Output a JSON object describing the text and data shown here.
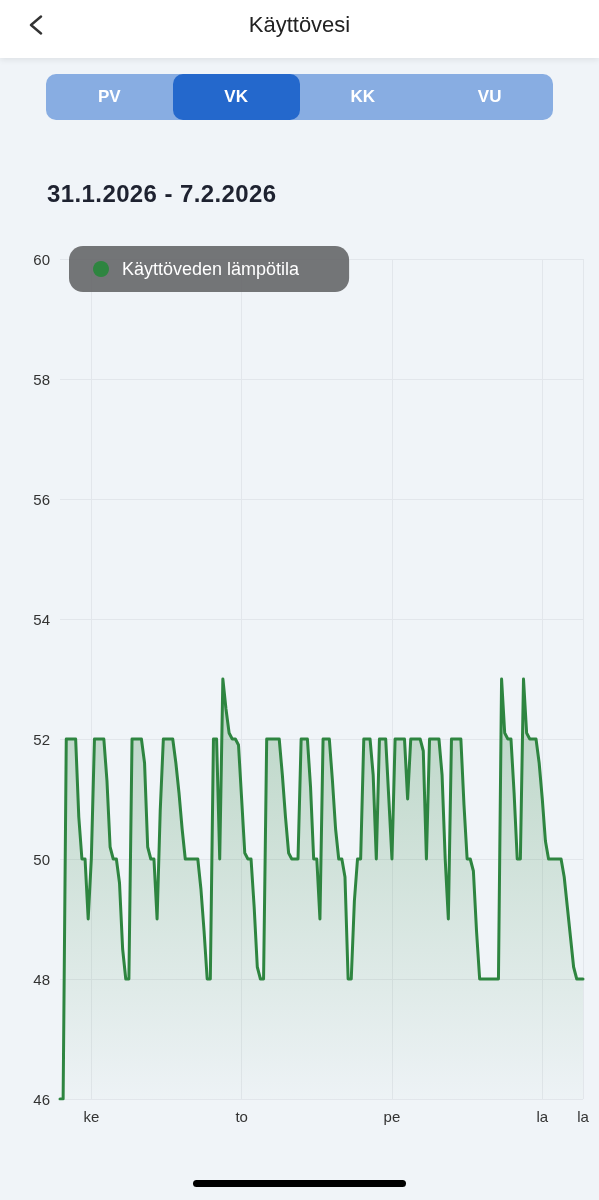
{
  "chart_data": {
    "type": "area",
    "title": "Käyttövesi",
    "subtitle": "31.1.2026 - 7.2.2026",
    "annotations": [
      "PV",
      "VK",
      "KK",
      "VU"
    ],
    "categories": [
      null,
      null,
      null,
      null,
      null,
      null,
      null,
      null,
      null,
      null,
      "ke",
      null,
      null,
      null,
      null,
      null,
      null,
      null,
      null,
      null,
      null,
      null,
      null,
      null,
      null,
      null,
      null,
      null,
      null,
      null,
      null,
      null,
      null,
      null,
      null,
      null,
      null,
      null,
      null,
      null,
      null,
      null,
      null,
      null,
      null,
      null,
      null,
      null,
      null,
      null,
      null,
      null,
      null,
      null,
      null,
      null,
      null,
      null,
      "to",
      null,
      null,
      null,
      null,
      null,
      null,
      null,
      null,
      null,
      null,
      null,
      null,
      null,
      null,
      null,
      null,
      null,
      null,
      null,
      null,
      null,
      null,
      null,
      null,
      null,
      null,
      null,
      null,
      null,
      null,
      null,
      null,
      null,
      null,
      null,
      null,
      null,
      null,
      null,
      null,
      null,
      null,
      null,
      null,
      null,
      null,
      null,
      "pe",
      null,
      null,
      null,
      null,
      null,
      null,
      null,
      null,
      null,
      null,
      null,
      null,
      null,
      null,
      null,
      null,
      null,
      null,
      null,
      null,
      null,
      null,
      null,
      null,
      null,
      null,
      null,
      null,
      null,
      null,
      null,
      null,
      null,
      null,
      null,
      null,
      null,
      null,
      null,
      null,
      null,
      null,
      null,
      null,
      null,
      null,
      null,
      "la",
      null,
      null,
      null,
      null,
      null,
      null,
      null,
      null,
      null,
      null,
      null,
      null,
      "la"
    ],
    "series": [
      {
        "name": "Käyttöveden lämpötila",
        "color": "#2e8540",
        "values": [
          46,
          46,
          52,
          52,
          52,
          52,
          50.7,
          50,
          50,
          49,
          50,
          52,
          52,
          52,
          52,
          51.3,
          50.2,
          50,
          50,
          49.6,
          48.5,
          48,
          48,
          52,
          52,
          52,
          52,
          51.6,
          50.2,
          50,
          50,
          49,
          50.8,
          52,
          52,
          52,
          52,
          51.6,
          51.1,
          50.5,
          50,
          50,
          50,
          50,
          50,
          49.5,
          48.8,
          48,
          48,
          52,
          52,
          50,
          53,
          52.5,
          52.1,
          52,
          52,
          51.9,
          51,
          50.1,
          50,
          50,
          49.2,
          48.2,
          48,
          48,
          52,
          52,
          52,
          52,
          52,
          51.4,
          50.7,
          50.1,
          50,
          50,
          50,
          52,
          52,
          52,
          51.2,
          50,
          50,
          49,
          52,
          52,
          52,
          51.3,
          50.5,
          50,
          50,
          49.7,
          48,
          48,
          49.3,
          50,
          50,
          52,
          52,
          52,
          51.4,
          50,
          52,
          52,
          52,
          51,
          50,
          52,
          52,
          52,
          52,
          51,
          52,
          52,
          52,
          52,
          51.8,
          50,
          52,
          52,
          52,
          52,
          51.4,
          50,
          49,
          52,
          52,
          52,
          52,
          50.9,
          50,
          50,
          49.8,
          48.8,
          48,
          48,
          48,
          48,
          48,
          48,
          48,
          53,
          52.1,
          52,
          52,
          51.1,
          50,
          50,
          53,
          52.1,
          52,
          52,
          52,
          51.6,
          51,
          50.3,
          50,
          50,
          50,
          50,
          50,
          49.7,
          49.2,
          48.7,
          48.2,
          48,
          48,
          48
        ]
      }
    ],
    "ylim": [
      46,
      60
    ],
    "yticks": [
      46,
      48,
      50,
      52,
      54,
      56,
      58,
      60
    ],
    "grid": true,
    "legend": "top left",
    "line_style": "solid"
  }
}
